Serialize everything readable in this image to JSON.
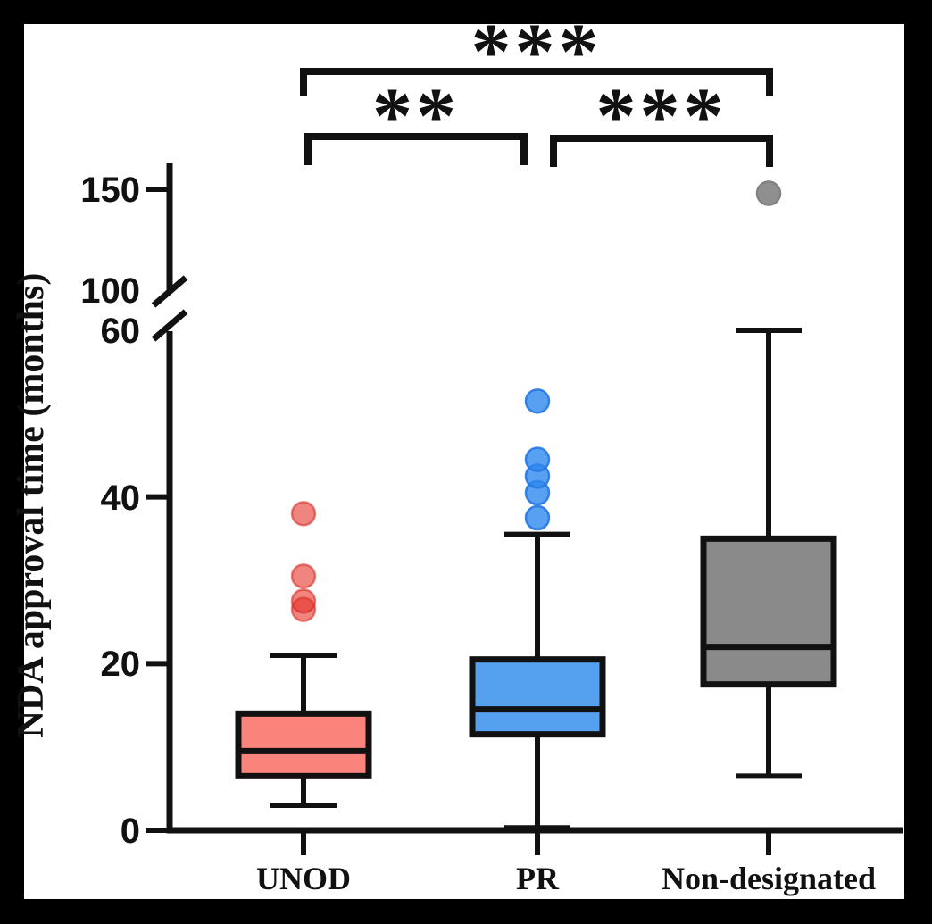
{
  "figure": {
    "background_color": "#000000",
    "plot_background_color": "#FFFFFF",
    "axis_color": "#111111"
  },
  "labels": {
    "y_axis_title": "NDA approval time (months)",
    "yticks": [
      "150",
      "100",
      "60",
      "40",
      "20",
      "0"
    ]
  },
  "chart_data": {
    "type": "box",
    "title": "",
    "ylabel": "NDA approval time (months)",
    "xlabel": "",
    "categories": [
      "UNOD",
      "PR",
      "Non-designated"
    ],
    "axis_break": {
      "lower_segment": [
        0,
        60
      ],
      "upper_segment": [
        100,
        150
      ]
    },
    "yticks_values": [
      0,
      20,
      40,
      60,
      100,
      150
    ],
    "grid": false,
    "legend": false,
    "series": [
      {
        "name": "UNOD",
        "box_fill": "#FA837C",
        "dot_fill": "rgba(230,50,42,0.6)",
        "dot_stroke": "rgba(210,35,30,0.55)",
        "whisker_low": 3,
        "q1": 6.5,
        "median": 9.5,
        "q3": 14,
        "whisker_high": 21,
        "outliers": [
          26.5,
          27.5,
          30.5,
          38
        ]
      },
      {
        "name": "PR",
        "box_fill": "#56A0F0",
        "dot_fill": "rgba(45,136,239,0.8)",
        "dot_stroke": "rgba(40,120,225,0.9)",
        "whisker_low": 0.3,
        "q1": 11.5,
        "median": 14.5,
        "q3": 20.5,
        "whisker_high": 35.5,
        "outliers": [
          37.5,
          40.5,
          42.5,
          44.5,
          51.5
        ]
      },
      {
        "name": "Non-designated",
        "box_fill": "#8A8A8A",
        "dot_fill": "#8F8F8F",
        "dot_stroke": "#828282",
        "whisker_low": 6.5,
        "q1": 17.5,
        "median": 22,
        "q3": 35,
        "whisker_high": 60,
        "outliers": [
          148
        ]
      }
    ],
    "significance": [
      {
        "groups": [
          "UNOD",
          "Non-designated"
        ],
        "label": "***"
      },
      {
        "groups": [
          "UNOD",
          "PR"
        ],
        "label": "**"
      },
      {
        "groups": [
          "PR",
          "Non-designated"
        ],
        "label": "***"
      }
    ]
  }
}
